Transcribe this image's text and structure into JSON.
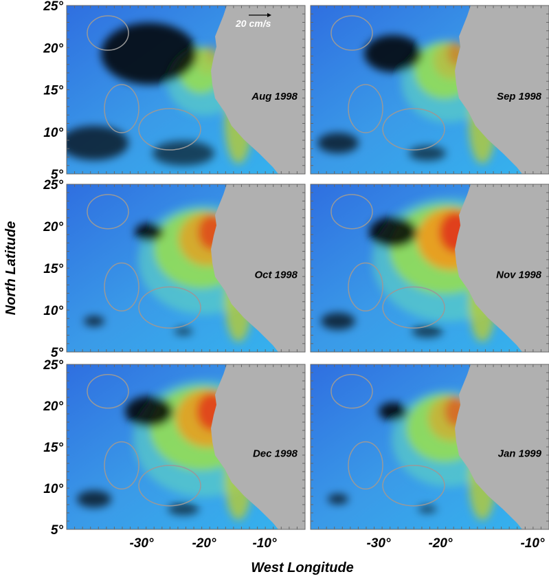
{
  "panels": [
    {
      "label": "Aug 1998"
    },
    {
      "label": "Sep 1998"
    },
    {
      "label": "Oct 1998"
    },
    {
      "label": "Nov 1998"
    },
    {
      "label": "Dec 1998"
    },
    {
      "label": "Jan 1999"
    }
  ],
  "scale_label": "20 cm/s",
  "y_axis": {
    "title": "North Latitude",
    "ticks": [
      "25°",
      "20°",
      "15°",
      "10°",
      "5°"
    ]
  },
  "x_axis": {
    "title": "West Longitude",
    "ticks": [
      "-30°",
      "-20°",
      "-10°"
    ]
  }
}
